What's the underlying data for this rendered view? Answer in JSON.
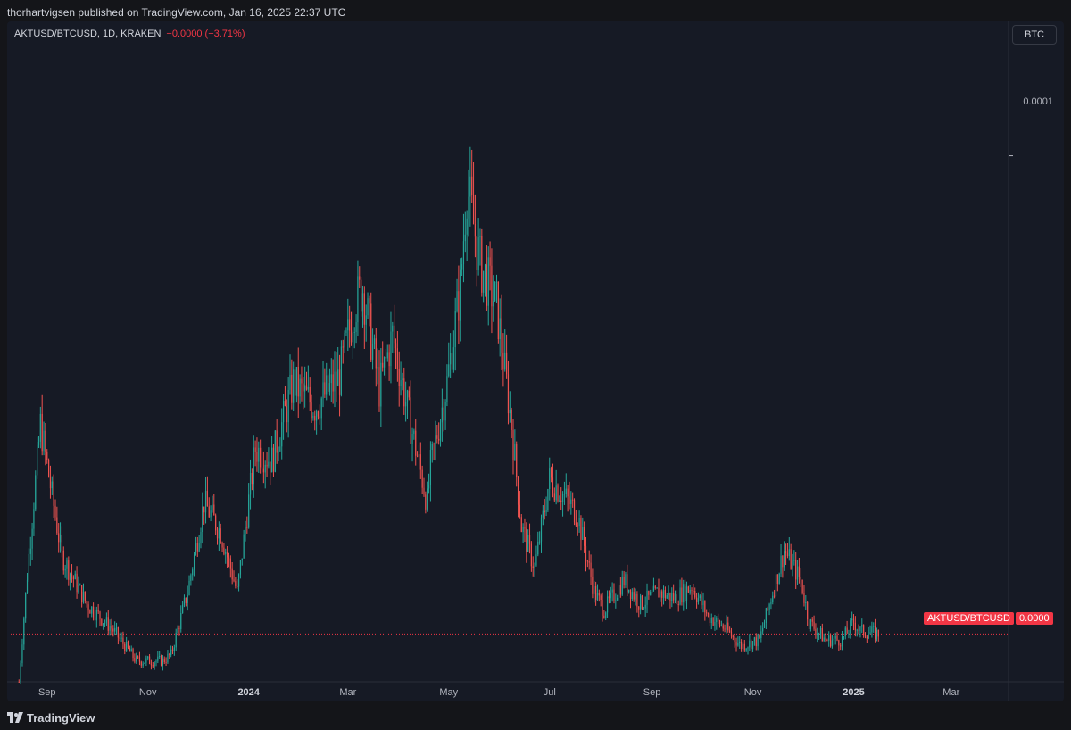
{
  "publisher": {
    "text": "thorhartvigsen published on TradingView.com, Jan 16, 2025 22:37 UTC"
  },
  "legend": {
    "symbol_info": "AKTUSD/BTCUSD, 1D, KRAKEN",
    "change": "−0.0000 (−3.71%)"
  },
  "axis": {
    "currency_badge": "BTC",
    "price_tick": "0.0001",
    "last_price_label": "0.0000",
    "last_symbol_label": "AKTUSD/BTCUSD"
  },
  "footer": {
    "brand": "TradingView"
  },
  "colors": {
    "up": "#26a69a",
    "down": "#ef5350",
    "last_line": "#f23645",
    "grid": "#2a2e39",
    "axis_text": "#b2b5be"
  },
  "chart_data": {
    "type": "line",
    "title": "AKTUSD/BTCUSD, 1D, KRAKEN",
    "xlabel": "",
    "ylabel": "",
    "x_ticks": [
      "Sep",
      "Nov",
      "2024",
      "Mar",
      "May",
      "Jul",
      "Sep",
      "Nov",
      "2025",
      "Mar"
    ],
    "y_ticks": [
      "0.0001"
    ],
    "grid": false,
    "last_value": 2e-05,
    "ylim": [
      1.2e-05,
      0.000118
    ],
    "x": [
      "2023-08-15",
      "2023-08-20",
      "2023-08-28",
      "2023-09-10",
      "2023-09-25",
      "2023-10-10",
      "2023-10-25",
      "2023-11-10",
      "2023-11-15",
      "2023-11-25",
      "2023-12-05",
      "2023-12-15",
      "2023-12-25",
      "2024-01-05",
      "2024-01-15",
      "2024-01-28",
      "2024-02-10",
      "2024-02-25",
      "2024-03-05",
      "2024-03-10",
      "2024-03-20",
      "2024-03-28",
      "2024-04-08",
      "2024-04-18",
      "2024-04-20",
      "2024-04-30",
      "2024-05-08",
      "2024-05-12",
      "2024-05-20",
      "2024-05-30",
      "2024-06-08",
      "2024-06-14",
      "2024-06-22",
      "2024-07-01",
      "2024-07-10",
      "2024-07-18",
      "2024-07-28",
      "2024-08-03",
      "2024-08-15",
      "2024-08-25",
      "2024-09-05",
      "2024-09-15",
      "2024-09-25",
      "2024-10-05",
      "2024-10-15",
      "2024-10-25",
      "2024-11-05",
      "2024-11-15",
      "2024-11-20",
      "2024-11-30",
      "2024-12-05",
      "2024-12-15",
      "2024-12-25",
      "2025-01-01",
      "2025-01-05",
      "2025-01-16"
    ],
    "values": [
      1.2e-05,
      3e-05,
      5.5e-05,
      3.3e-05,
      2.5e-05,
      2.1e-05,
      1.55e-05,
      1.55e-05,
      1.65e-05,
      2.7e-05,
      4.2e-05,
      3.7e-05,
      2.7e-05,
      5.1e-05,
      4.9e-05,
      6.2e-05,
      5.8e-05,
      6.3e-05,
      7.5e-05,
      7.8e-05,
      6.1e-05,
      7e-05,
      5.5e-05,
      4.2e-05,
      4.8e-05,
      6.2e-05,
      7.8e-05,
      9.5e-05,
      8.2e-05,
      7.5e-05,
      5.5e-05,
      3.8e-05,
      3.1e-05,
      4.6e-05,
      4.3e-05,
      4e-05,
      2.7e-05,
      2.4e-05,
      2.9e-05,
      2.5e-05,
      2.7e-05,
      2.6e-05,
      2.8e-05,
      2.3e-05,
      2.1e-05,
      1.8e-05,
      1.9e-05,
      2.9e-05,
      3.4e-05,
      2.9e-05,
      2.2e-05,
      1.9e-05,
      1.9e-05,
      2.2e-05,
      2.05e-05,
      2e-05
    ]
  }
}
